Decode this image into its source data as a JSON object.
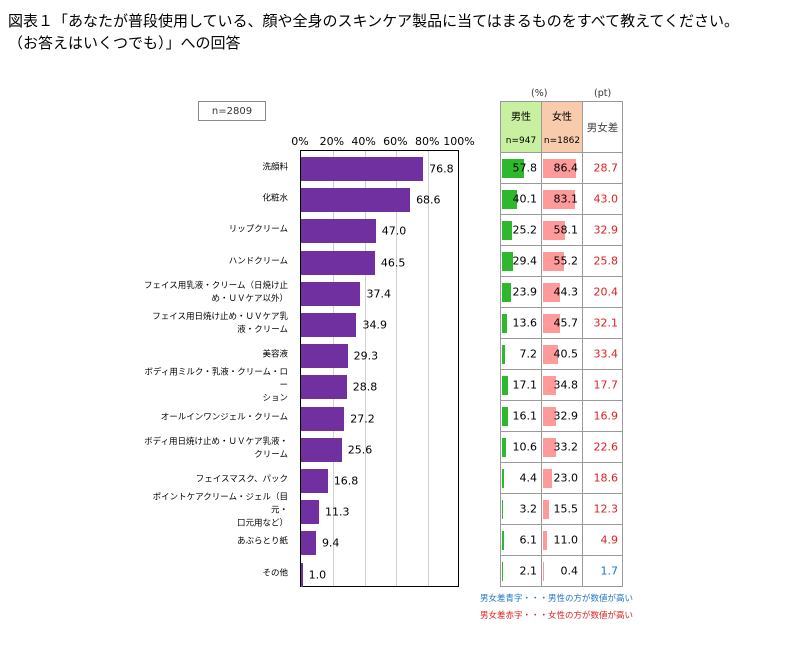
{
  "title_line1": "図表１「あなたが普段使用している、顔や全身のスキンケア製品に当てはまるものをすべて教えてください。",
  "title_line2": "（お答えはいくつでも）」への回答",
  "sample_label": "n=2809",
  "units": {
    "percent": "(%)",
    "points": "(pt)"
  },
  "table_headers": {
    "male": "男性",
    "male_n": "n=947",
    "female": "女性",
    "female_n": "n=1862",
    "diff": "男女差"
  },
  "notes": {
    "blue": "男女差青字・・・男性の方が数値が高い",
    "red": "男女差赤字・・・女性の方が数値が高い"
  },
  "colors": {
    "bar": "#7030a0",
    "male": "#2db82d",
    "female": "#ff9a9a",
    "female_higher": "#e02020",
    "male_higher": "#1f78c8"
  },
  "chart_data": {
    "type": "bar",
    "orientation": "horizontal",
    "xlim": [
      0,
      100
    ],
    "ticks": [
      "0%",
      "20%",
      "40%",
      "60%",
      "80%",
      "100%"
    ],
    "categories": [
      "洗顔料",
      "化粧水",
      "リップクリーム",
      "ハンドクリーム",
      "フェイス用乳液・クリーム（日焼け止め・ＵＶケア以外）",
      "フェイス用日焼け止め・ＵＶケア乳液・クリーム",
      "美容液",
      "ボディ用ミルク・乳液・クリーム・ローション",
      "オールインワンジェル・クリーム",
      "ボディ用日焼け止め・ＵＶケア乳液・クリーム",
      "フェイスマスク、パック",
      "ポイントケアクリーム・ジェル（目元・口元用など）",
      "あぶらとり紙",
      "その他"
    ],
    "category_lines": [
      [
        "洗顔料"
      ],
      [
        "化粧水"
      ],
      [
        "リップクリーム"
      ],
      [
        "ハンドクリーム"
      ],
      [
        "フェイス用乳液・クリーム（日焼け止",
        "め・ＵＶケア以外）"
      ],
      [
        "フェイス用日焼け止め・ＵＶケア乳",
        "液・クリーム"
      ],
      [
        "美容液"
      ],
      [
        "ボディ用ミルク・乳液・クリーム・ロー",
        "ション"
      ],
      [
        "オールインワンジェル・クリーム"
      ],
      [
        "ボディ用日焼け止め・ＵＶケア乳液・",
        "クリーム"
      ],
      [
        "フェイスマスク、パック"
      ],
      [
        "ポイントケアクリーム・ジェル（目元・",
        "口元用など）"
      ],
      [
        "あぶらとり紙"
      ],
      [
        "その他"
      ]
    ],
    "values": [
      76.8,
      68.6,
      47.0,
      46.5,
      37.4,
      34.9,
      29.3,
      28.8,
      27.2,
      25.6,
      16.8,
      11.3,
      9.4,
      1.0
    ],
    "value_labels": [
      "76.8",
      "68.6",
      "47.0",
      "46.5",
      "37.4",
      "34.9",
      "29.3",
      "28.8",
      "27.2",
      "25.6",
      "16.8",
      "11.3",
      "9.4",
      "1.0"
    ],
    "male": [
      "57.8",
      "40.1",
      "25.2",
      "29.4",
      "23.9",
      "13.6",
      "7.2",
      "17.1",
      "16.1",
      "10.6",
      "4.4",
      "3.2",
      "6.1",
      "2.1"
    ],
    "female": [
      "86.4",
      "83.1",
      "58.1",
      "55.2",
      "44.3",
      "45.7",
      "40.5",
      "34.8",
      "32.9",
      "33.2",
      "23.0",
      "15.5",
      "11.0",
      "0.4"
    ],
    "diff": [
      "28.7",
      "43.0",
      "32.9",
      "25.8",
      "20.4",
      "32.1",
      "33.4",
      "17.7",
      "16.9",
      "22.6",
      "18.6",
      "12.3",
      "4.9",
      "1.7"
    ],
    "diff_sign": [
      "female",
      "female",
      "female",
      "female",
      "female",
      "female",
      "female",
      "female",
      "female",
      "female",
      "female",
      "female",
      "female",
      "male"
    ]
  }
}
